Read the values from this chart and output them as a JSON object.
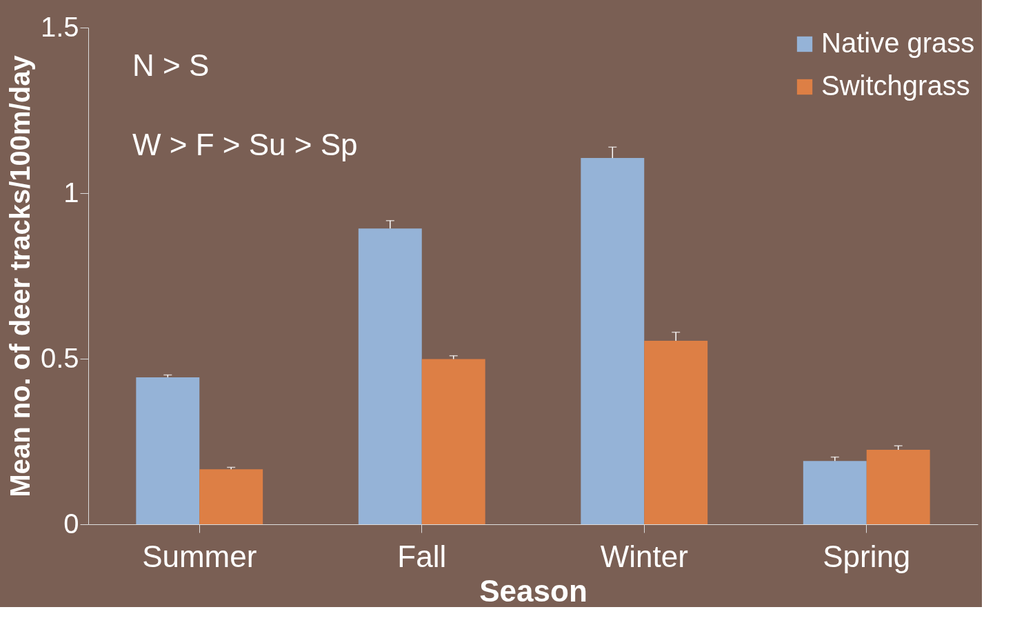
{
  "chart_data": {
    "type": "bar",
    "xlabel": "Season",
    "ylabel": "Mean no. of deer tracks/100m/day",
    "categories": [
      "Summer",
      "Fall",
      "Winter",
      "Spring"
    ],
    "series": [
      {
        "name": "Native grass",
        "color": "#95b3d7",
        "values": [
          0.444,
          0.893,
          1.106,
          0.191
        ],
        "errors": [
          0.007,
          0.024,
          0.033,
          0.012
        ]
      },
      {
        "name": "Switchgrass",
        "color": "#dd7f45",
        "values": [
          0.166,
          0.499,
          0.554,
          0.225
        ],
        "errors": [
          0.006,
          0.01,
          0.026,
          0.012
        ]
      }
    ],
    "ylim": [
      0,
      1.5
    ],
    "yticks": [
      0,
      0.5,
      1,
      1.5
    ],
    "annotations": [
      "N > S",
      "W > F > Su > Sp"
    ],
    "grid": false,
    "legend": "top right"
  }
}
